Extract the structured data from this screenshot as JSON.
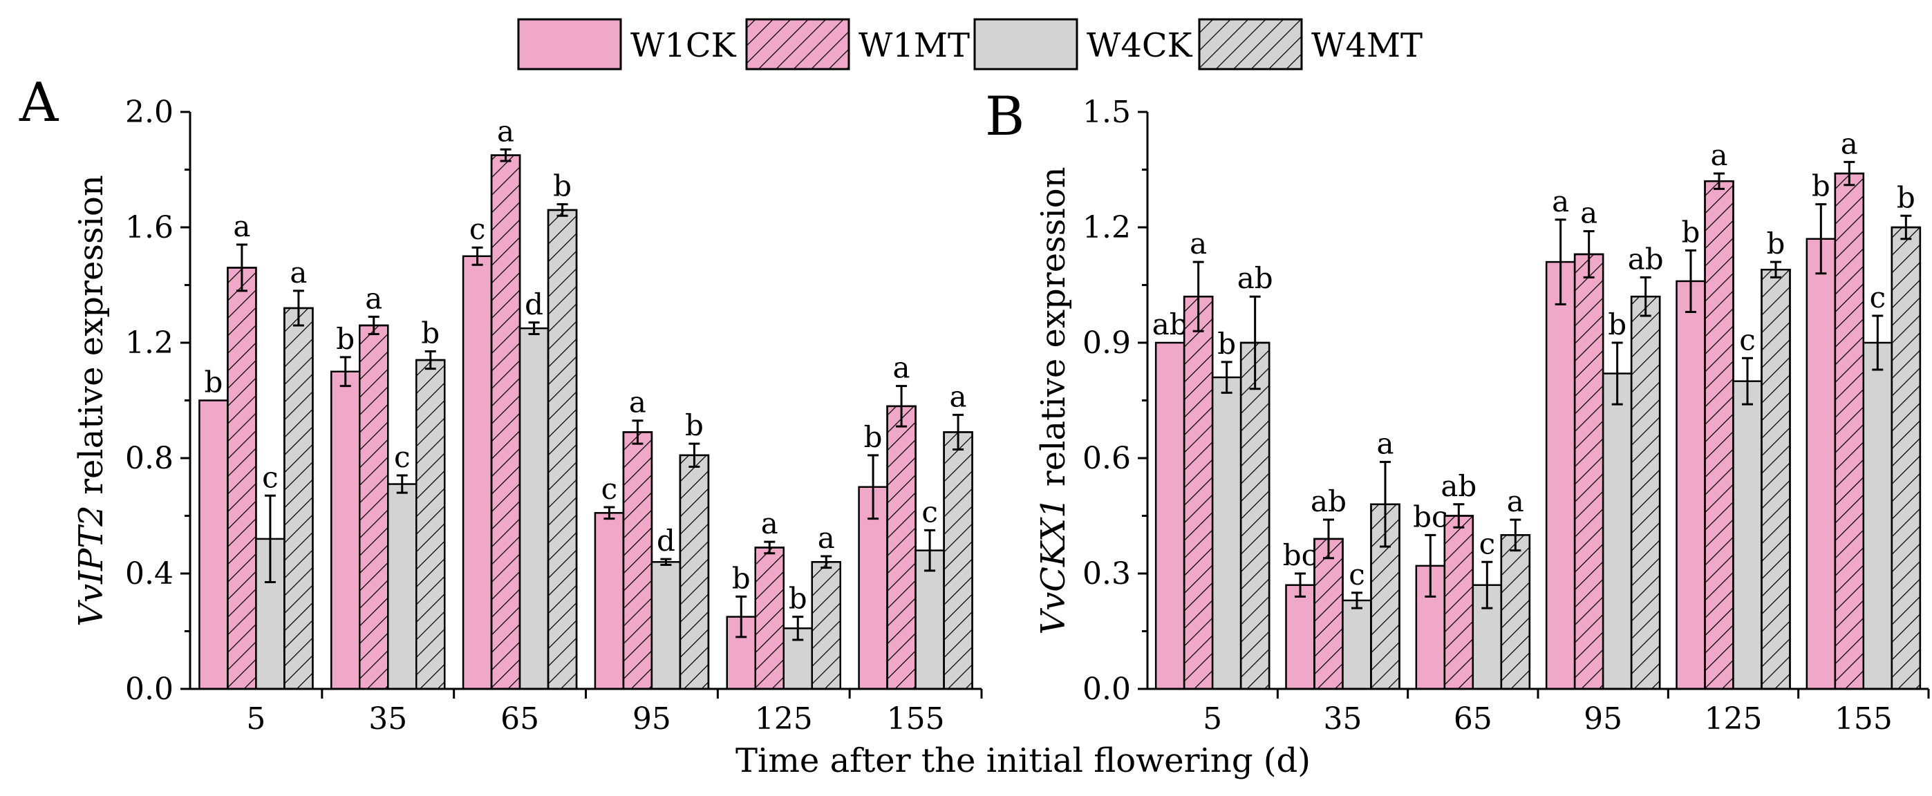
{
  "colors": {
    "pink": "#f0a8c8",
    "gray": "#d3d3d3",
    "hatch": "#000000"
  },
  "legend": {
    "items": [
      {
        "label": "W1CK",
        "fill": "pink",
        "hatched": false
      },
      {
        "label": "W1MT",
        "fill": "pink",
        "hatched": true
      },
      {
        "label": "W4CK",
        "fill": "gray",
        "hatched": false
      },
      {
        "label": "W4MT",
        "fill": "gray",
        "hatched": true
      }
    ]
  },
  "xlabel": "Time after the initial flowering (d)",
  "chart_data": [
    {
      "type": "bar",
      "panel": "A",
      "ylabel_italic": "VvIPT2",
      "ylabel_rest": " relative expression",
      "categories": [
        "5",
        "35",
        "65",
        "95",
        "125",
        "155"
      ],
      "ylim": [
        0,
        2.0
      ],
      "yticks": [
        0.0,
        0.4,
        0.8,
        1.2,
        1.6,
        2.0
      ],
      "ytick_labels": [
        "0.0",
        "0.4",
        "0.8",
        "1.2",
        "1.6",
        "2.0"
      ],
      "series": [
        {
          "name": "W1CK",
          "values": [
            1.0,
            1.1,
            1.5,
            0.61,
            0.25,
            0.7
          ],
          "errors": [
            0.0,
            0.05,
            0.03,
            0.02,
            0.07,
            0.11
          ],
          "labels": [
            "b",
            "b",
            "c",
            "c",
            "b",
            "b"
          ]
        },
        {
          "name": "W1MT",
          "values": [
            1.46,
            1.26,
            1.85,
            0.89,
            0.49,
            0.98
          ],
          "errors": [
            0.08,
            0.03,
            0.02,
            0.04,
            0.02,
            0.07
          ],
          "labels": [
            "a",
            "a",
            "a",
            "a",
            "a",
            "a"
          ]
        },
        {
          "name": "W4CK",
          "values": [
            0.52,
            0.71,
            1.25,
            0.44,
            0.21,
            0.48
          ],
          "errors": [
            0.15,
            0.03,
            0.02,
            0.01,
            0.04,
            0.07
          ],
          "labels": [
            "c",
            "c",
            "d",
            "d",
            "b",
            "c"
          ]
        },
        {
          "name": "W4MT",
          "values": [
            1.32,
            1.14,
            1.66,
            0.81,
            0.44,
            0.89
          ],
          "errors": [
            0.06,
            0.03,
            0.02,
            0.04,
            0.02,
            0.06
          ],
          "labels": [
            "a",
            "b",
            "b",
            "b",
            "a",
            "a"
          ]
        }
      ]
    },
    {
      "type": "bar",
      "panel": "B",
      "ylabel_italic": "VvCKX1",
      "ylabel_rest": " relative expression",
      "categories": [
        "5",
        "35",
        "65",
        "95",
        "125",
        "155"
      ],
      "ylim": [
        0,
        1.5
      ],
      "yticks": [
        0.0,
        0.3,
        0.6,
        0.9,
        1.2,
        1.5
      ],
      "ytick_labels": [
        "0.0",
        "0.3",
        "0.6",
        "0.9",
        "1.2",
        "1.5"
      ],
      "series": [
        {
          "name": "W1CK",
          "values": [
            0.9,
            0.27,
            0.32,
            1.11,
            1.06,
            1.17
          ],
          "errors": [
            0.0,
            0.03,
            0.08,
            0.11,
            0.08,
            0.09
          ],
          "labels": [
            "ab",
            "bc",
            "bc",
            "a",
            "b",
            "b"
          ]
        },
        {
          "name": "W1MT",
          "values": [
            1.02,
            0.39,
            0.45,
            1.13,
            1.32,
            1.34
          ],
          "errors": [
            0.09,
            0.05,
            0.03,
            0.06,
            0.02,
            0.03
          ],
          "labels": [
            "a",
            "ab",
            "ab",
            "a",
            "a",
            "a"
          ]
        },
        {
          "name": "W4CK",
          "values": [
            0.81,
            0.23,
            0.27,
            0.82,
            0.8,
            0.9
          ],
          "errors": [
            0.04,
            0.02,
            0.06,
            0.08,
            0.06,
            0.07
          ],
          "labels": [
            "b",
            "c",
            "c",
            "b",
            "c",
            "c"
          ]
        },
        {
          "name": "W4MT",
          "values": [
            0.9,
            0.48,
            0.4,
            1.02,
            1.09,
            1.2
          ],
          "errors": [
            0.12,
            0.11,
            0.04,
            0.05,
            0.02,
            0.03
          ],
          "labels": [
            "ab",
            "a",
            "a",
            "ab",
            "b",
            "b"
          ]
        }
      ]
    }
  ]
}
